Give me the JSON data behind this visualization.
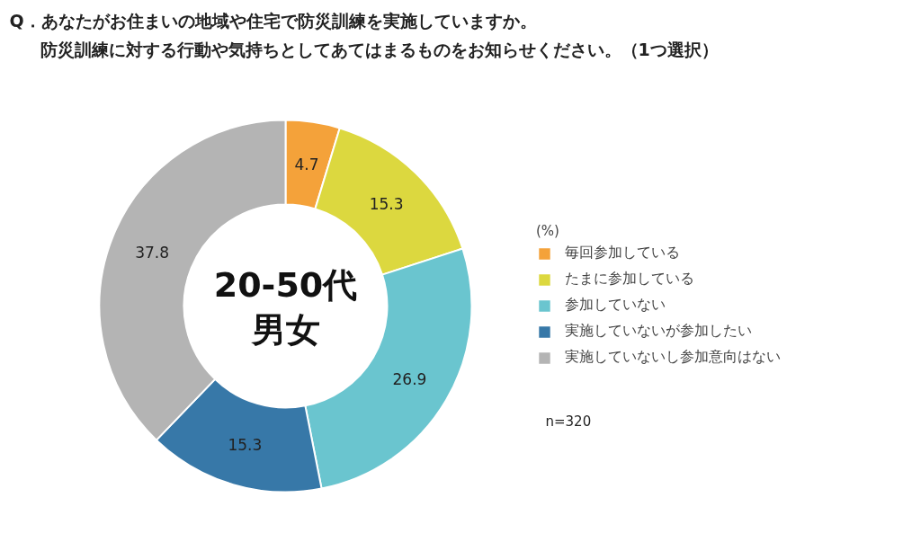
{
  "chart_data": {
    "type": "donut",
    "title": "Q．あなたがお住まいの地域や住宅で防災訓練を実施していますか。",
    "subtitle": "防災訓練に対する行動や気持ちとしてあてはまるものをお知らせください。（1つ選択）",
    "categories": [
      "毎回参加している",
      "たまに参加している",
      "参加していない",
      "実施していないが参加したい",
      "実施していないし参加意向はない"
    ],
    "values": [
      4.7,
      15.3,
      26.9,
      15.3,
      37.8
    ],
    "colors": [
      "#f4a23a",
      "#dcd83f",
      "#6ac5cf",
      "#3778a8",
      "#b4b4b4"
    ],
    "data_labels": true,
    "legend": "right",
    "legend_title": "(%)",
    "annotations": [
      "20-50代",
      "男女",
      "n=320"
    ]
  }
}
